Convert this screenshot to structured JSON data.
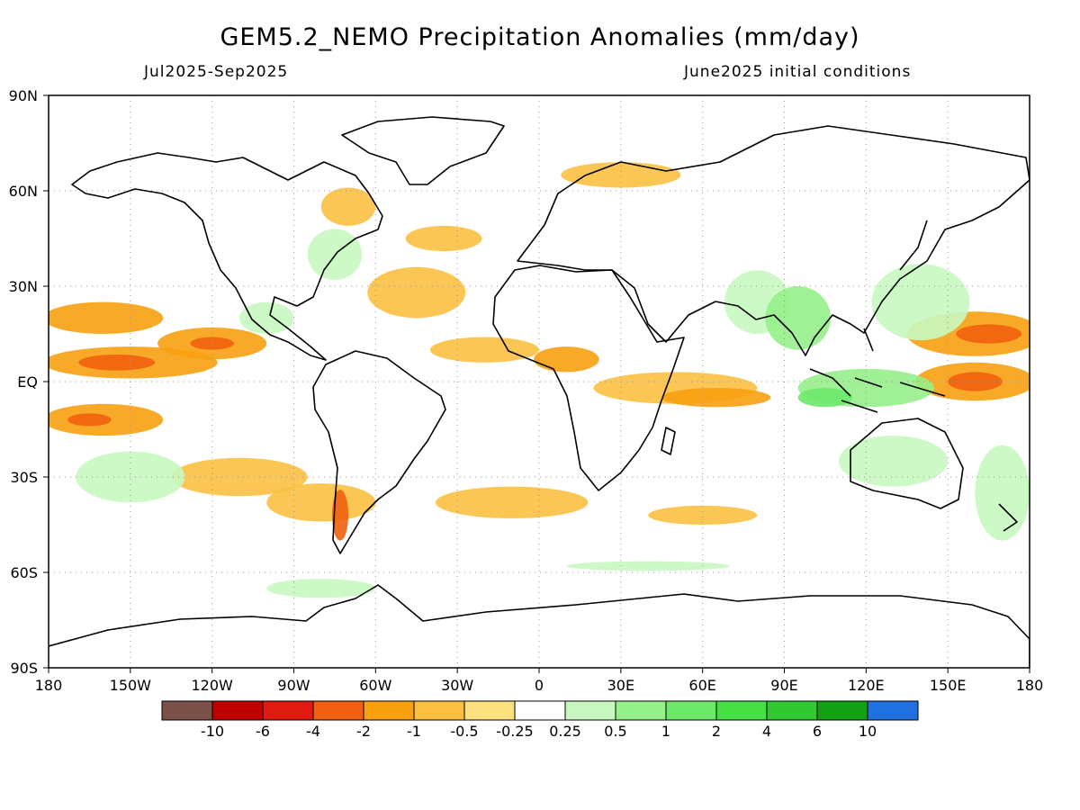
{
  "header": {
    "title": "GEM5.2_NEMO Precipitation Anomalies (mm/day)",
    "period": "Jul2025-Sep2025",
    "init": "June2025 initial conditions"
  },
  "axes": {
    "lon_labels": [
      "180",
      "150W",
      "120W",
      "90W",
      "60W",
      "30W",
      "0",
      "30E",
      "60E",
      "90E",
      "120E",
      "150E",
      "180"
    ],
    "lat_labels": [
      "90N",
      "60N",
      "30N",
      "EQ",
      "30S",
      "60S",
      "90S"
    ]
  },
  "colorbar": {
    "labels": [
      "-10",
      "-6",
      "-4",
      "-2",
      "-1",
      "-0.5",
      "-0.25",
      "0.25",
      "0.5",
      "1",
      "2",
      "4",
      "6",
      "10"
    ],
    "colors": [
      "#7a5048",
      "#c00000",
      "#e01a10",
      "#f06010",
      "#f7a010",
      "#fbc040",
      "#fde080",
      "#ffffff",
      "#c8f8c0",
      "#96f08a",
      "#6de86a",
      "#46e046",
      "#32c832",
      "#14a014",
      "#2070e0"
    ]
  },
  "chart_data": {
    "type": "heatmap",
    "title": "GEM5.2_NEMO Precipitation Anomalies (mm/day)",
    "subtitle_left": "Jul2025-Sep2025",
    "subtitle_right": "June2025 initial conditions",
    "xlim": [
      -180,
      180
    ],
    "ylim": [
      -90,
      90
    ],
    "grid": true,
    "anomaly_regions": [
      {
        "lon": -160,
        "lat": 20,
        "rx": 22,
        "ry": 5,
        "level": -1
      },
      {
        "lon": -150,
        "lat": 6,
        "rx": 32,
        "ry": 5,
        "level": -1
      },
      {
        "lon": -155,
        "lat": 6,
        "rx": 14,
        "ry": 2.5,
        "level": -2
      },
      {
        "lon": -120,
        "lat": 12,
        "rx": 20,
        "ry": 5,
        "level": -1
      },
      {
        "lon": -120,
        "lat": 12,
        "rx": 8,
        "ry": 2,
        "level": -2
      },
      {
        "lon": -160,
        "lat": -12,
        "rx": 22,
        "ry": 5,
        "level": -1
      },
      {
        "lon": -165,
        "lat": -12,
        "rx": 8,
        "ry": 2,
        "level": -2
      },
      {
        "lon": -110,
        "lat": -30,
        "rx": 25,
        "ry": 6,
        "level": -0.5
      },
      {
        "lon": -80,
        "lat": -38,
        "rx": 20,
        "ry": 6,
        "level": -0.5
      },
      {
        "lon": -73,
        "lat": -42,
        "rx": 3,
        "ry": 8,
        "level": -2
      },
      {
        "lon": -45,
        "lat": 28,
        "rx": 18,
        "ry": 8,
        "level": -0.5
      },
      {
        "lon": -70,
        "lat": 55,
        "rx": 10,
        "ry": 6,
        "level": -0.5
      },
      {
        "lon": -35,
        "lat": 45,
        "rx": 14,
        "ry": 4,
        "level": -0.5
      },
      {
        "lon": -20,
        "lat": 10,
        "rx": 20,
        "ry": 4,
        "level": -0.5
      },
      {
        "lon": 10,
        "lat": 7,
        "rx": 12,
        "ry": 4,
        "level": -1
      },
      {
        "lon": 50,
        "lat": -2,
        "rx": 30,
        "ry": 5,
        "level": -0.5
      },
      {
        "lon": 65,
        "lat": -5,
        "rx": 20,
        "ry": 3,
        "level": -1
      },
      {
        "lon": 30,
        "lat": 65,
        "rx": 22,
        "ry": 4,
        "level": -0.5
      },
      {
        "lon": -10,
        "lat": -38,
        "rx": 28,
        "ry": 5,
        "level": -0.5
      },
      {
        "lon": 60,
        "lat": -42,
        "rx": 20,
        "ry": 3,
        "level": -0.5
      },
      {
        "lon": 160,
        "lat": 15,
        "rx": 25,
        "ry": 7,
        "level": -1
      },
      {
        "lon": 165,
        "lat": 15,
        "rx": 12,
        "ry": 3,
        "level": -2
      },
      {
        "lon": 160,
        "lat": 0,
        "rx": 22,
        "ry": 6,
        "level": -1
      },
      {
        "lon": 160,
        "lat": 0,
        "rx": 10,
        "ry": 3,
        "level": -2
      },
      {
        "lon": -150,
        "lat": -30,
        "rx": 20,
        "ry": 8,
        "level": 0.5
      },
      {
        "lon": -100,
        "lat": 20,
        "rx": 10,
        "ry": 5,
        "level": 0.5
      },
      {
        "lon": -75,
        "lat": 40,
        "rx": 10,
        "ry": 8,
        "level": 0.5
      },
      {
        "lon": 80,
        "lat": 25,
        "rx": 12,
        "ry": 10,
        "level": 0.5
      },
      {
        "lon": 95,
        "lat": 20,
        "rx": 12,
        "ry": 10,
        "level": 1
      },
      {
        "lon": 120,
        "lat": -2,
        "rx": 25,
        "ry": 6,
        "level": 1
      },
      {
        "lon": 105,
        "lat": -5,
        "rx": 10,
        "ry": 3,
        "level": 2
      },
      {
        "lon": 140,
        "lat": 25,
        "rx": 18,
        "ry": 12,
        "level": 0.5
      },
      {
        "lon": 130,
        "lat": -25,
        "rx": 20,
        "ry": 8,
        "level": 0.5
      },
      {
        "lon": 170,
        "lat": -35,
        "rx": 10,
        "ry": 15,
        "level": 0.5
      },
      {
        "lon": -80,
        "lat": -65,
        "rx": 20,
        "ry": 3,
        "level": 0.5
      },
      {
        "lon": 40,
        "lat": -58,
        "rx": 30,
        "ry": 1.5,
        "level": 0.5
      }
    ]
  }
}
